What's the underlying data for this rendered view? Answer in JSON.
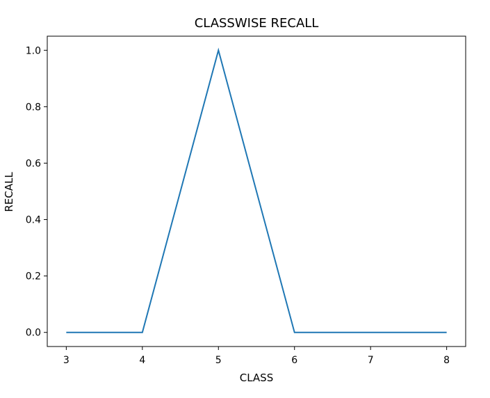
{
  "chart_data": {
    "type": "line",
    "title": "CLASSWISE RECALL",
    "xlabel": "CLASS",
    "ylabel": "RECALL",
    "x": [
      3,
      4,
      5,
      6,
      7,
      8
    ],
    "series": [
      {
        "values": [
          0.0,
          0.0,
          1.0,
          0.0,
          0.0,
          0.0
        ],
        "color": "#1f77b4"
      }
    ],
    "xticks": [
      3,
      4,
      5,
      6,
      7,
      8
    ],
    "xtick_labels": [
      "3",
      "4",
      "5",
      "6",
      "7",
      "8"
    ],
    "yticks": [
      0.0,
      0.2,
      0.4,
      0.6,
      0.8,
      1.0
    ],
    "ytick_labels": [
      "0.0",
      "0.2",
      "0.4",
      "0.6",
      "0.8",
      "1.0"
    ],
    "xlim": [
      2.75,
      8.25
    ],
    "ylim": [
      -0.05,
      1.05
    ],
    "grid": false,
    "legend": "none"
  }
}
